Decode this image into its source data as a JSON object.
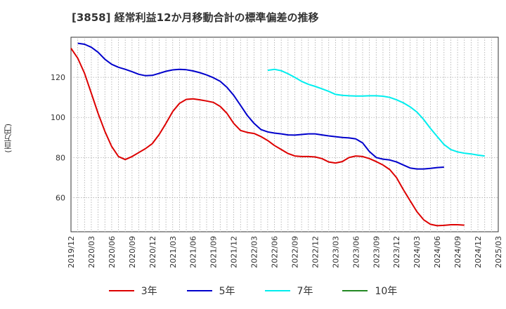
{
  "chart_data": {
    "type": "line",
    "title": "[3858]  経常利益12か月移動合計の標準偏差の推移",
    "ylabel": "(百万円)",
    "xlabel": "",
    "ylim": [
      43,
      140
    ],
    "yticks": [
      60,
      80,
      100,
      120
    ],
    "xticks": [
      "2019/12",
      "2020/03",
      "2020/06",
      "2020/09",
      "2020/12",
      "2021/03",
      "2021/06",
      "2021/09",
      "2021/12",
      "2022/03",
      "2022/06",
      "2022/09",
      "2022/12",
      "2023/03",
      "2023/06",
      "2023/09",
      "2023/12",
      "2024/03",
      "2024/06",
      "2024/09",
      "2024/12",
      "2025/03"
    ],
    "grid": true,
    "legend_position": "bottom",
    "series": [
      {
        "name": "3年",
        "color": "#dd0000",
        "start": 0,
        "values": [
          134.5,
          129.5,
          122,
          112,
          102,
          93,
          85.5,
          80.5,
          79,
          80.5,
          82.5,
          84.5,
          87,
          91.5,
          97,
          103,
          107,
          109,
          109.3,
          108.8,
          108.2,
          107.5,
          105.5,
          102,
          97,
          93.5,
          92.5,
          92,
          90.5,
          88.5,
          86,
          84,
          82,
          80.8,
          80.5,
          80.5,
          80.3,
          79.5,
          77.8,
          77.3,
          78,
          80,
          80.8,
          80.5,
          79.5,
          78,
          76.3,
          74,
          70,
          64,
          58.5,
          53,
          49,
          46.7,
          46,
          46.2,
          46.5,
          46.5,
          46.3
        ]
      },
      {
        "name": "5年",
        "color": "#0000cc",
        "start": 1,
        "values": [
          137,
          136.5,
          135,
          132.5,
          129,
          126.5,
          125,
          124,
          122.8,
          121.5,
          120.8,
          121,
          122,
          123,
          123.7,
          124,
          123.8,
          123.2,
          122.3,
          121.2,
          119.8,
          118,
          115,
          111,
          106,
          101,
          97,
          94,
          92.8,
          92.2,
          91.8,
          91.3,
          91.2,
          91.5,
          91.8,
          91.8,
          91.3,
          90.8,
          90.4,
          90,
          89.8,
          89.3,
          87.3,
          83,
          80,
          79.2,
          78.8,
          77.8,
          76.3,
          74.8,
          74.3,
          74.3,
          74.6,
          75,
          75.2
        ]
      },
      {
        "name": "7年",
        "color": "#00eeee",
        "start": 29,
        "values": [
          123.5,
          124,
          123.3,
          121.8,
          120,
          118,
          116.5,
          115.5,
          114.3,
          113,
          111.5,
          111,
          110.8,
          110.7,
          110.7,
          110.8,
          110.8,
          110.6,
          110,
          108.8,
          107.3,
          105.3,
          102.7,
          99,
          94.5,
          90.5,
          86.5,
          84,
          82.8,
          82.2,
          81.8,
          81.2,
          80.8
        ]
      },
      {
        "name": "10年",
        "color": "#228822",
        "start": 0,
        "values": []
      }
    ]
  }
}
